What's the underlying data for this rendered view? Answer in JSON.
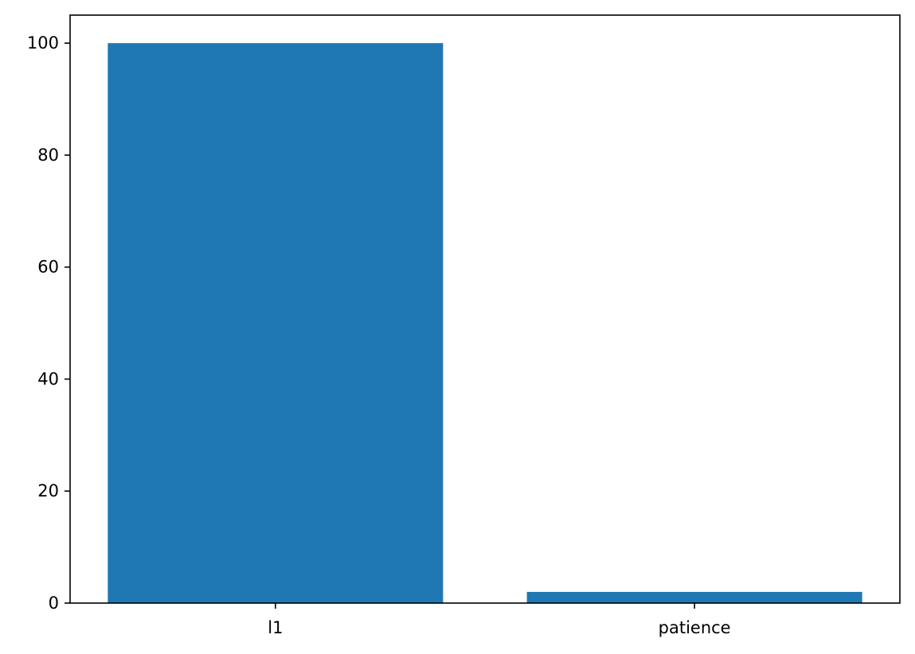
{
  "chart_data": {
    "type": "bar",
    "title": "",
    "xlabel": "",
    "ylabel": "",
    "categories": [
      "l1",
      "patience"
    ],
    "values": [
      100,
      2
    ],
    "ylim": [
      0,
      105
    ],
    "yticks": [
      0,
      20,
      40,
      60,
      80,
      100
    ],
    "grid": false,
    "bar_color": "#1f77b4"
  }
}
